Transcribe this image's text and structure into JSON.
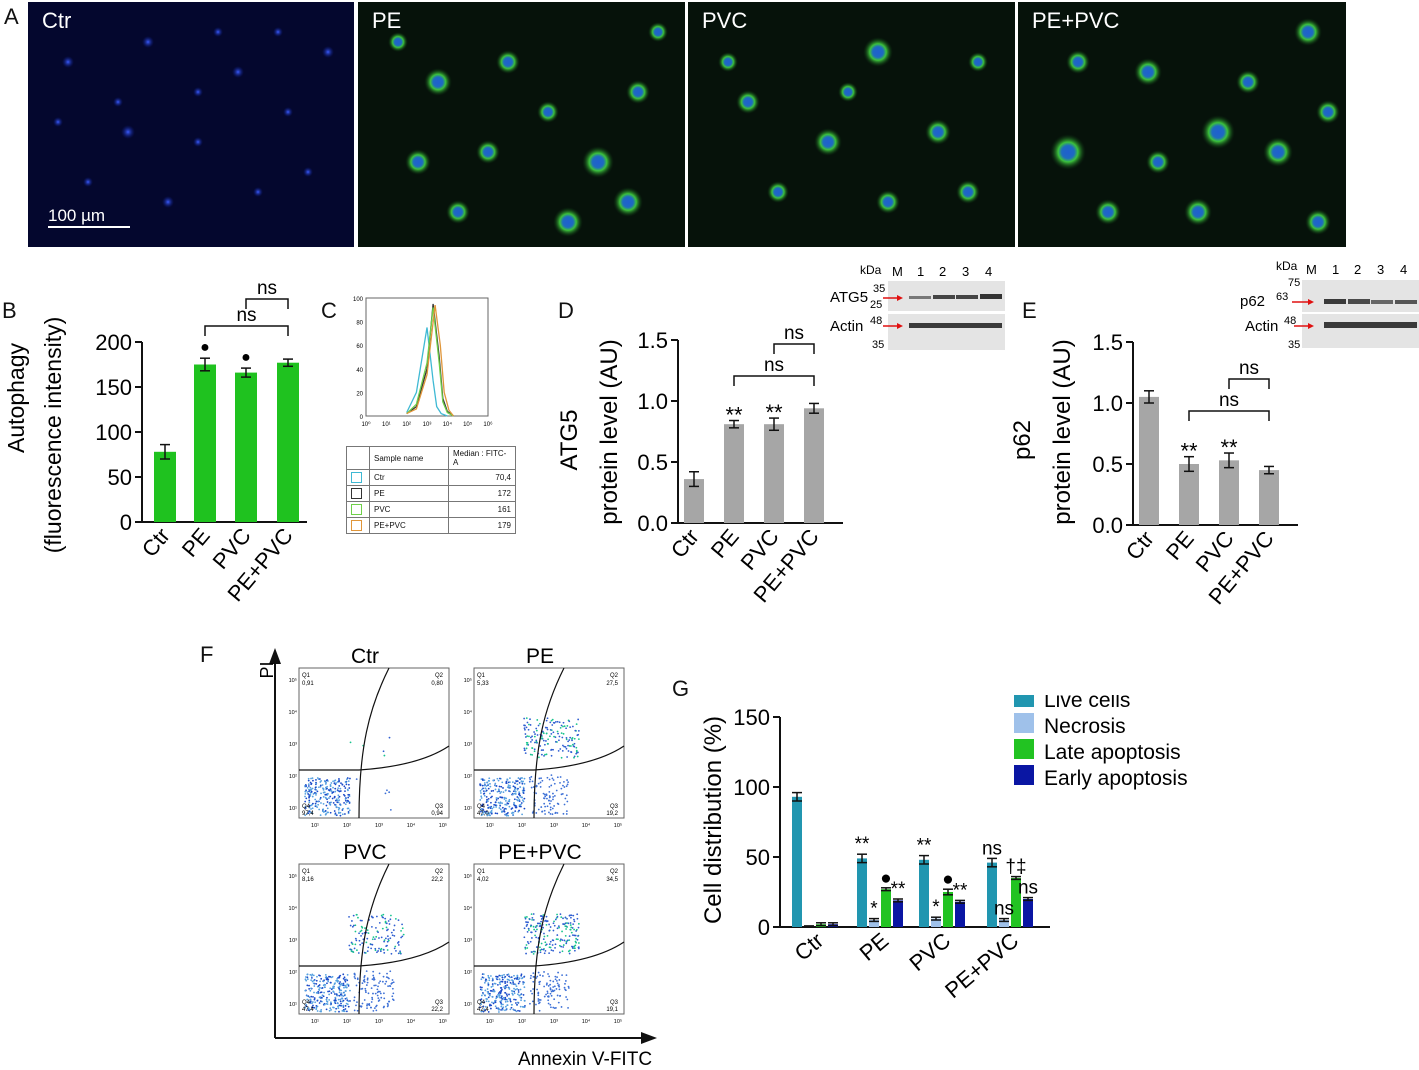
{
  "panels": {
    "A": "A",
    "B": "B",
    "C": "C",
    "D": "D",
    "E": "E",
    "F": "F",
    "G": "G"
  },
  "micrographs": {
    "labels": [
      "Ctr",
      "PE",
      "PVC",
      "PE+PVC"
    ],
    "scale_bar": "100 µm"
  },
  "panel_b": {
    "ylabel_1": "Autophagy",
    "ylabel_2": "(fluorescence intensity)",
    "ns_labels": [
      "ns",
      "ns"
    ]
  },
  "panel_c": {
    "x_ticks": [
      "10⁰",
      "10¹",
      "10²",
      "10³",
      "10⁴",
      "10⁵",
      "10⁶"
    ],
    "y_ticks": [
      "100",
      "80",
      "60",
      "40",
      "20",
      "0"
    ],
    "header": {
      "sample": "Sample name",
      "median": "Median : FITC-A"
    },
    "rows": [
      {
        "name": "Ctr",
        "median": "70,4",
        "color": "#3fb9d4"
      },
      {
        "name": "PE",
        "median": "172",
        "color": "#333333"
      },
      {
        "name": "PVC",
        "median": "161",
        "color": "#6fd04a"
      },
      {
        "name": "PE+PVC",
        "median": "179",
        "color": "#e0963a"
      }
    ]
  },
  "panel_d": {
    "ylabel_1": "ATG5",
    "ylabel_2": "protein level (AU)",
    "sig": [
      "**",
      "**"
    ],
    "ns_labels": [
      "ns",
      "ns"
    ],
    "blot": {
      "kda": "kDa",
      "lanes": [
        "M",
        "1",
        "2",
        "3",
        "4"
      ],
      "bands": [
        {
          "name": "ATG5",
          "marker": "25",
          "upper": "35"
        },
        {
          "name": "Actin",
          "marker": "48",
          "lower": "35"
        }
      ]
    }
  },
  "panel_e": {
    "ylabel_1": "p62",
    "ylabel_2": "protein level (AU)",
    "sig": [
      "**",
      "**"
    ],
    "ns_labels": [
      "ns",
      "ns"
    ],
    "blot": {
      "kda": "kDa",
      "lanes": [
        "M",
        "1",
        "2",
        "3",
        "4"
      ],
      "bands": [
        {
          "name": "p62",
          "marker": "63",
          "upper": "75"
        },
        {
          "name": "Actin",
          "marker": "48",
          "lower": "35"
        }
      ]
    }
  },
  "panel_f": {
    "y_axis": "PI",
    "x_axis": "Annexin V-FITC",
    "plots": [
      {
        "title": "Ctr",
        "q1_label": "Q1",
        "q1": "0,91",
        "q2_label": "Q2",
        "q2": "0,80",
        "q3_label": "Q3",
        "q3": "0,94",
        "q4_label": "Q4",
        "q4": "97,4"
      },
      {
        "title": "PE",
        "q1_label": "Q1",
        "q1": "5,33",
        "q2_label": "Q2",
        "q2": "27,5",
        "q3_label": "Q3",
        "q3": "19,2",
        "q4_label": "Q4",
        "q4": "47,0"
      },
      {
        "title": "PVC",
        "q1_label": "Q1",
        "q1": "8,16",
        "q2_label": "Q2",
        "q2": "22,2",
        "q3_label": "Q3",
        "q3": "22,2",
        "q4_label": "Q4",
        "q4": "47,4"
      },
      {
        "title": "PE+PVC",
        "q1_label": "Q1",
        "q1": "4,02",
        "q2_label": "Q2",
        "q2": "34,5",
        "q3_label": "Q3",
        "q3": "19,1",
        "q4_label": "Q4",
        "q4": "42,4"
      }
    ],
    "tick_labels": [
      "10¹",
      "10²",
      "10³",
      "10⁴",
      "10⁵"
    ],
    "y_tick_labels": [
      "10⁵",
      "10⁴",
      "10³",
      "10²",
      "10¹"
    ]
  },
  "panel_g": {
    "ylabel": "Cell distribution (%)",
    "legend": [
      "Live cells",
      "Necrosis",
      "Late apoptosis",
      "Early apoptosis"
    ],
    "annotations": [
      "**",
      "*",
      "●",
      "**",
      "**",
      "*",
      "●",
      "**",
      "ns",
      "ns",
      "†‡",
      "ns"
    ]
  },
  "chart_data": [
    {
      "type": "bar",
      "categories": [
        "Ctr",
        "PE",
        "PVC",
        "PE+PVC"
      ],
      "values": [
        78,
        175,
        166,
        177
      ],
      "errors": [
        8,
        7,
        5,
        4
      ],
      "markers": [
        "",
        "●",
        "●",
        ""
      ],
      "ylim": [
        0,
        200
      ],
      "yticks": [
        "0",
        "50",
        "100",
        "150",
        "200"
      ],
      "color": "#1fc21f"
    },
    {
      "type": "line",
      "x_scale": "log",
      "x_range": [
        1,
        1000000
      ],
      "ylim": [
        0,
        100
      ],
      "series": [
        {
          "name": "Ctr",
          "color": "#3fb9d4",
          "x": [
            100,
            300,
            1000,
            2000,
            3000,
            5000,
            10000
          ],
          "y": [
            3,
            20,
            75,
            30,
            8,
            2,
            0
          ]
        },
        {
          "name": "PE",
          "color": "#333333",
          "x": [
            100,
            300,
            1000,
            2000,
            4000,
            6000,
            10000,
            20000
          ],
          "y": [
            2,
            8,
            40,
            95,
            50,
            15,
            4,
            0
          ]
        },
        {
          "name": "PVC",
          "color": "#6fd04a",
          "x": [
            100,
            300,
            1000,
            2000,
            4000,
            6000,
            10000,
            20000
          ],
          "y": [
            2,
            10,
            45,
            92,
            45,
            12,
            3,
            0
          ]
        },
        {
          "name": "PE+PVC",
          "color": "#e0963a",
          "x": [
            100,
            300,
            1000,
            2500,
            4500,
            7000,
            12000,
            20000
          ],
          "y": [
            2,
            6,
            35,
            94,
            60,
            20,
            5,
            0
          ]
        }
      ]
    },
    {
      "type": "bar",
      "categories": [
        "Ctr",
        "PE",
        "PVC",
        "PE+PVC"
      ],
      "values": [
        0.36,
        0.81,
        0.81,
        0.94
      ],
      "errors": [
        0.06,
        0.03,
        0.05,
        0.04
      ],
      "ylim": [
        0,
        1.5
      ],
      "yticks": [
        "0.0",
        "0.5",
        "1.0",
        "1.5"
      ],
      "color": "#a6a6a6"
    },
    {
      "type": "bar",
      "categories": [
        "Ctr",
        "PE",
        "PVC",
        "PE+PVC"
      ],
      "values": [
        1.05,
        0.5,
        0.53,
        0.45
      ],
      "errors": [
        0.05,
        0.06,
        0.06,
        0.03
      ],
      "ylim": [
        0,
        1.5
      ],
      "yticks": [
        "0.0",
        "0.5",
        "1.0",
        "1.5"
      ],
      "color": "#a6a6a6"
    },
    {
      "type": "bar",
      "categories": [
        "Ctr",
        "PE",
        "PVC",
        "PE+PVC"
      ],
      "ylim": [
        0,
        150
      ],
      "yticks": [
        "0",
        "50",
        "100",
        "150"
      ],
      "series": [
        {
          "name": "Live cells",
          "color": "#2196b0",
          "values": [
            93,
            49,
            48,
            46
          ],
          "errors": [
            3,
            3,
            3,
            3
          ]
        },
        {
          "name": "Necrosis",
          "color": "#9fc1ea",
          "values": [
            0.5,
            5,
            6,
            5
          ],
          "errors": [
            0.3,
            1,
            1,
            1
          ]
        },
        {
          "name": "Late apoptosis",
          "color": "#22c322",
          "values": [
            2,
            27,
            25,
            35
          ],
          "errors": [
            1,
            1,
            2,
            1
          ]
        },
        {
          "name": "Early apoptosis",
          "color": "#0a16a3",
          "values": [
            2,
            19,
            18,
            20
          ],
          "errors": [
            1,
            1,
            1,
            1
          ]
        }
      ]
    }
  ]
}
